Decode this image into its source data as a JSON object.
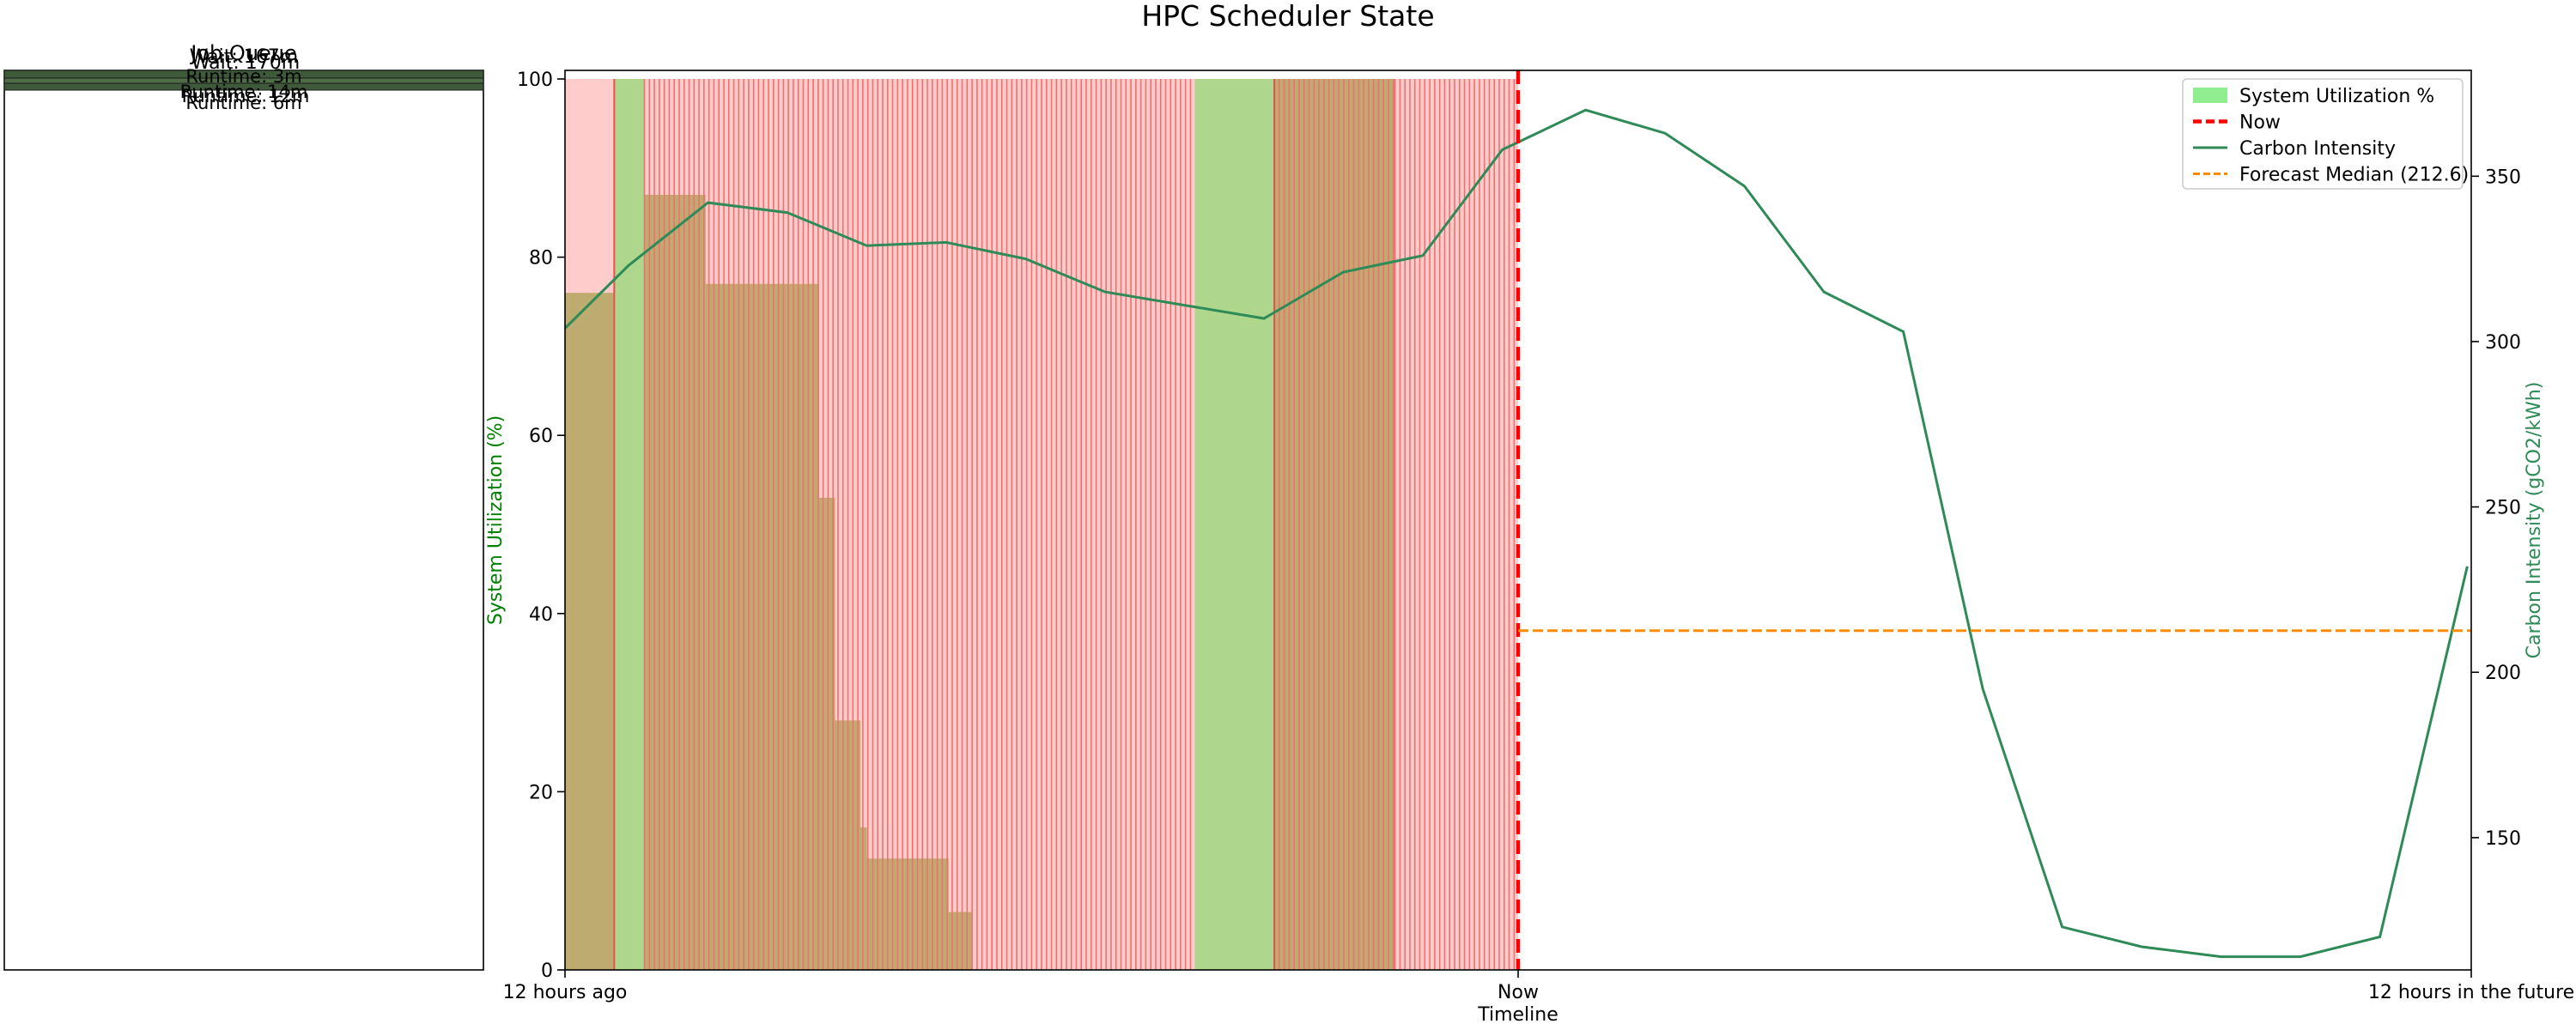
{
  "title": "HPC Scheduler State",
  "queue_panel": {
    "title": "Job Queue",
    "overlapping_labels": [
      "Wait: 167m",
      "Wait: 170m",
      "Runtime: 3m",
      "Runtime: 14m",
      "Runtime: 12m",
      "Runtime: 6m"
    ]
  },
  "chart_data": {
    "type": "area",
    "x_axis": {
      "label": "Timeline",
      "range_hours": [
        -12,
        12
      ],
      "ticks": [
        {
          "value": -12,
          "label": "12 hours ago"
        },
        {
          "value": 0,
          "label": "Now"
        },
        {
          "value": 12,
          "label": "12 hours in the future"
        }
      ]
    },
    "y_left": {
      "label": "System Utilization (%)",
      "range": [
        0,
        100
      ],
      "ticks": [
        0,
        20,
        40,
        60,
        80,
        100
      ],
      "color": "#008000"
    },
    "y_right": {
      "label": "Carbon Intensity (gCO2/kWh)",
      "range": [
        110,
        382
      ],
      "ticks": [
        150,
        200,
        250,
        300,
        350
      ],
      "color": "#2e8b57"
    },
    "legend": {
      "placement": "top-right",
      "entries": [
        {
          "label": "System Utilization %",
          "style": "patch",
          "color": "#90ee90"
        },
        {
          "label": "Now",
          "style": "dashed",
          "color": "#ff0000"
        },
        {
          "label": "Carbon Intensity",
          "style": "solid",
          "color": "#2e8b57"
        },
        {
          "label": "Forecast Median (212.6)",
          "style": "dashed",
          "color": "#ff8c00"
        }
      ]
    },
    "now_value": 0,
    "forecast_median": 212.6,
    "utilization": {
      "color": "#90ee90",
      "steps": [
        {
          "start": -12.0,
          "end": -11.38,
          "value": 76
        },
        {
          "start": -11.38,
          "end": -11.0,
          "value": 100
        },
        {
          "start": -11.0,
          "end": -10.23,
          "value": 87
        },
        {
          "start": -10.23,
          "end": -8.8,
          "value": 77
        },
        {
          "start": -8.8,
          "end": -8.6,
          "value": 53
        },
        {
          "start": -8.6,
          "end": -8.28,
          "value": 28
        },
        {
          "start": -8.28,
          "end": -8.2,
          "value": 16
        },
        {
          "start": -8.2,
          "end": -7.17,
          "value": 12.5
        },
        {
          "start": -7.17,
          "end": -6.88,
          "value": 6.5
        },
        {
          "start": -6.88,
          "end": -4.07,
          "value": 0
        },
        {
          "start": -4.07,
          "end": -1.55,
          "value": 100
        },
        {
          "start": -1.55,
          "end": 0.0,
          "value": 0
        }
      ]
    },
    "state_bands": {
      "color": "#ff0000",
      "fill_alpha": 0.2,
      "height": 100,
      "segments": [
        {
          "start": -12.0,
          "end": -11.38
        },
        {
          "start": -11.0,
          "end": -4.07
        },
        {
          "start": -3.07,
          "end": -1.55
        },
        {
          "start": -1.55,
          "end": 0.0
        }
      ],
      "single_boundaries": [
        -11.38,
        -3.07
      ]
    },
    "carbon_intensity": {
      "color": "#2e8b57",
      "x": [
        -12.0,
        -11.2,
        -10.2,
        -9.2,
        -8.2,
        -7.2,
        -6.2,
        -5.2,
        -4.2,
        -3.2,
        -2.2,
        -1.2,
        -0.2,
        0.85,
        1.85,
        2.85,
        3.85,
        4.85,
        5.85,
        6.85,
        7.85,
        8.85,
        9.85,
        10.85,
        11.95
      ],
      "y": [
        304,
        323,
        342,
        339,
        329,
        330,
        325,
        315,
        311,
        307,
        321,
        326,
        358,
        370,
        363,
        347,
        315,
        303,
        195,
        123,
        117,
        114,
        114,
        120,
        232
      ]
    },
    "grid": false
  }
}
